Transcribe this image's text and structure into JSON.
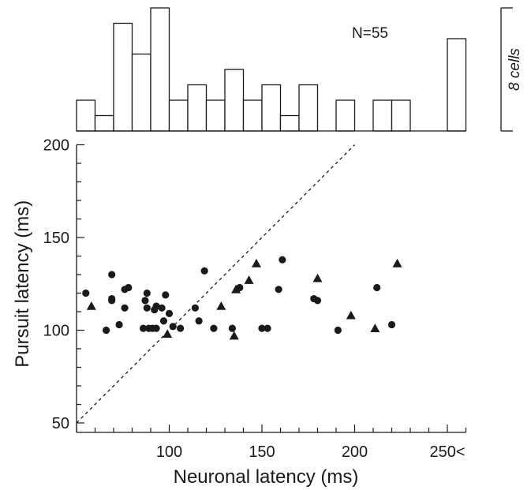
{
  "chart_data": [
    {
      "type": "bar",
      "panel": "histogram",
      "annotation": "N=55",
      "scale_bar_label": "8 cells",
      "scale_bar_cells": 8,
      "bins_start": 50,
      "bin_width": 10,
      "counts": [
        2,
        1,
        7,
        5,
        8,
        2,
        3,
        2,
        4,
        2,
        3,
        1,
        3,
        0,
        2,
        0,
        2,
        2,
        0,
        0,
        6
      ],
      "color": "#1a1a1a",
      "fill": "#ffffff"
    },
    {
      "type": "scatter",
      "panel": "scatter",
      "xlabel": "Neuronal latency (ms)",
      "ylabel": "Pursuit latency (ms)",
      "xlim": [
        50,
        260
      ],
      "ylim": [
        50,
        200
      ],
      "x_tick_labels": [
        {
          "value": 100,
          "label": "100"
        },
        {
          "value": 150,
          "label": "150"
        },
        {
          "value": 200,
          "label": "200"
        },
        {
          "value": 250,
          "label": "250<"
        }
      ],
      "y_tick_labels": [
        {
          "value": 50,
          "label": "50"
        },
        {
          "value": 100,
          "label": "100"
        },
        {
          "value": 150,
          "label": "150"
        },
        {
          "value": 200,
          "label": "200"
        }
      ],
      "reference_line": {
        "style": "dashed",
        "from": [
          50,
          50
        ],
        "to": [
          200,
          200
        ]
      },
      "series": [
        {
          "marker": "circle",
          "points": [
            [
              55,
              120
            ],
            [
              66,
              100
            ],
            [
              69,
              130
            ],
            [
              69,
              117
            ],
            [
              69,
              116
            ],
            [
              73,
              103
            ],
            [
              76,
              122
            ],
            [
              76,
              112
            ],
            [
              78,
              123
            ],
            [
              86,
              101
            ],
            [
              87,
              116
            ],
            [
              88,
              112
            ],
            [
              88,
              120
            ],
            [
              89,
              101
            ],
            [
              91,
              101
            ],
            [
              92,
              111
            ],
            [
              93,
              113
            ],
            [
              93,
              101
            ],
            [
              96,
              112
            ],
            [
              97,
              105
            ],
            [
              98,
              119
            ],
            [
              100,
              109
            ],
            [
              102,
              102
            ],
            [
              106,
              101
            ],
            [
              114,
              112
            ],
            [
              116,
              105
            ],
            [
              119,
              132
            ],
            [
              124,
              101
            ],
            [
              134,
              101
            ],
            [
              138,
              123
            ],
            [
              150,
              101
            ],
            [
              153,
              101
            ],
            [
              159,
              122
            ],
            [
              161,
              138
            ],
            [
              178,
              117
            ],
            [
              180,
              116
            ],
            [
              191,
              100
            ],
            [
              212,
              123
            ],
            [
              220,
              103
            ]
          ]
        },
        {
          "marker": "triangle",
          "points": [
            [
              58,
              113
            ],
            [
              99,
              98
            ],
            [
              128,
              113
            ],
            [
              135,
              97
            ],
            [
              136,
              122
            ],
            [
              143,
              127
            ],
            [
              147,
              136
            ],
            [
              180,
              128
            ],
            [
              198,
              108
            ],
            [
              211,
              101
            ],
            [
              223,
              136
            ]
          ]
        }
      ],
      "color": "#1a1a1a"
    }
  ]
}
